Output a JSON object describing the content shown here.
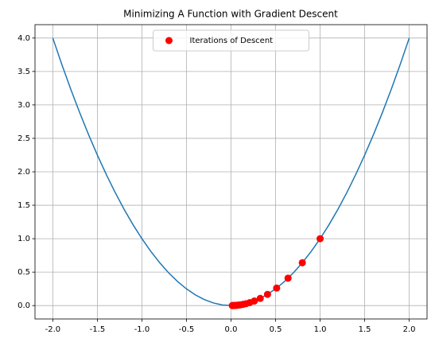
{
  "chart_data": {
    "type": "line",
    "title": "Minimizing A Function with Gradient Descent",
    "series": [
      {
        "color": "#1f77b4",
        "x": [
          -2.0,
          -1.9,
          -1.8,
          -1.7,
          -1.6,
          -1.5,
          -1.4,
          -1.3,
          -1.2,
          -1.1,
          -1.0,
          -0.9,
          -0.8,
          -0.7,
          -0.6,
          -0.5,
          -0.4,
          -0.3,
          -0.2,
          -0.1,
          0.0,
          0.1,
          0.2,
          0.3,
          0.4,
          0.5,
          0.6,
          0.7,
          0.8,
          0.9,
          1.0,
          1.1,
          1.2,
          1.3,
          1.4,
          1.5,
          1.6,
          1.7,
          1.8,
          1.9,
          2.0
        ],
        "values": [
          4.0,
          3.61,
          3.24,
          2.89,
          2.56,
          2.25,
          1.96,
          1.69,
          1.44,
          1.21,
          1.0,
          0.81,
          0.64,
          0.49,
          0.36,
          0.25,
          0.16,
          0.09,
          0.04,
          0.01,
          0.0,
          0.01,
          0.04,
          0.09,
          0.16,
          0.25,
          0.36,
          0.49,
          0.64,
          0.81,
          1.0,
          1.21,
          1.44,
          1.69,
          1.96,
          2.25,
          2.56,
          2.89,
          3.24,
          3.61,
          4.0
        ]
      },
      {
        "name": "Iterations of Descent",
        "type": "scatter",
        "color": "#ff0000",
        "x": [
          1,
          0.8,
          0.64,
          0.512,
          0.4096,
          0.3277,
          0.2621,
          0.2097,
          0.1678,
          0.1342,
          0.1074,
          0.0859,
          0.0687,
          0.055,
          0.044,
          0.0352,
          0.0281,
          0.0225,
          0.018,
          0.0144
        ],
        "values": [
          1,
          0.64,
          0.4096,
          0.2621,
          0.1678,
          0.1074,
          0.0687,
          0.044,
          0.0281,
          0.018,
          0.0115,
          0.0074,
          0.0047,
          0.003,
          0.0019,
          0.0012,
          0.0008,
          0.0005,
          0.0003,
          0.0002
        ]
      }
    ],
    "xlim": [
      -2.2,
      2.2
    ],
    "xticks": [
      {
        "value": -2,
        "label": "-2.0"
      },
      {
        "value": -1.5,
        "label": "-1.5"
      },
      {
        "value": -1,
        "label": "-1.0"
      },
      {
        "value": -0.5,
        "label": "-0.5"
      },
      {
        "value": 0,
        "label": "0.0"
      },
      {
        "value": 0.5,
        "label": "0.5"
      },
      {
        "value": 1,
        "label": "1.0"
      },
      {
        "value": 1.5,
        "label": "1.5"
      },
      {
        "value": 2,
        "label": "2.0"
      }
    ],
    "ylim": [
      -0.2,
      4.2
    ],
    "yticks": [
      {
        "value": 0,
        "label": "0.0"
      },
      {
        "value": 0.5,
        "label": "0.5"
      },
      {
        "value": 1,
        "label": "1.0"
      },
      {
        "value": 1.5,
        "label": "1.5"
      },
      {
        "value": 2,
        "label": "2.0"
      },
      {
        "value": 2.5,
        "label": "2.5"
      },
      {
        "value": 3,
        "label": "3.0"
      },
      {
        "value": 3.5,
        "label": "3.5"
      },
      {
        "value": 4,
        "label": "4.0"
      }
    ],
    "grid": true,
    "legend": "upper center"
  }
}
